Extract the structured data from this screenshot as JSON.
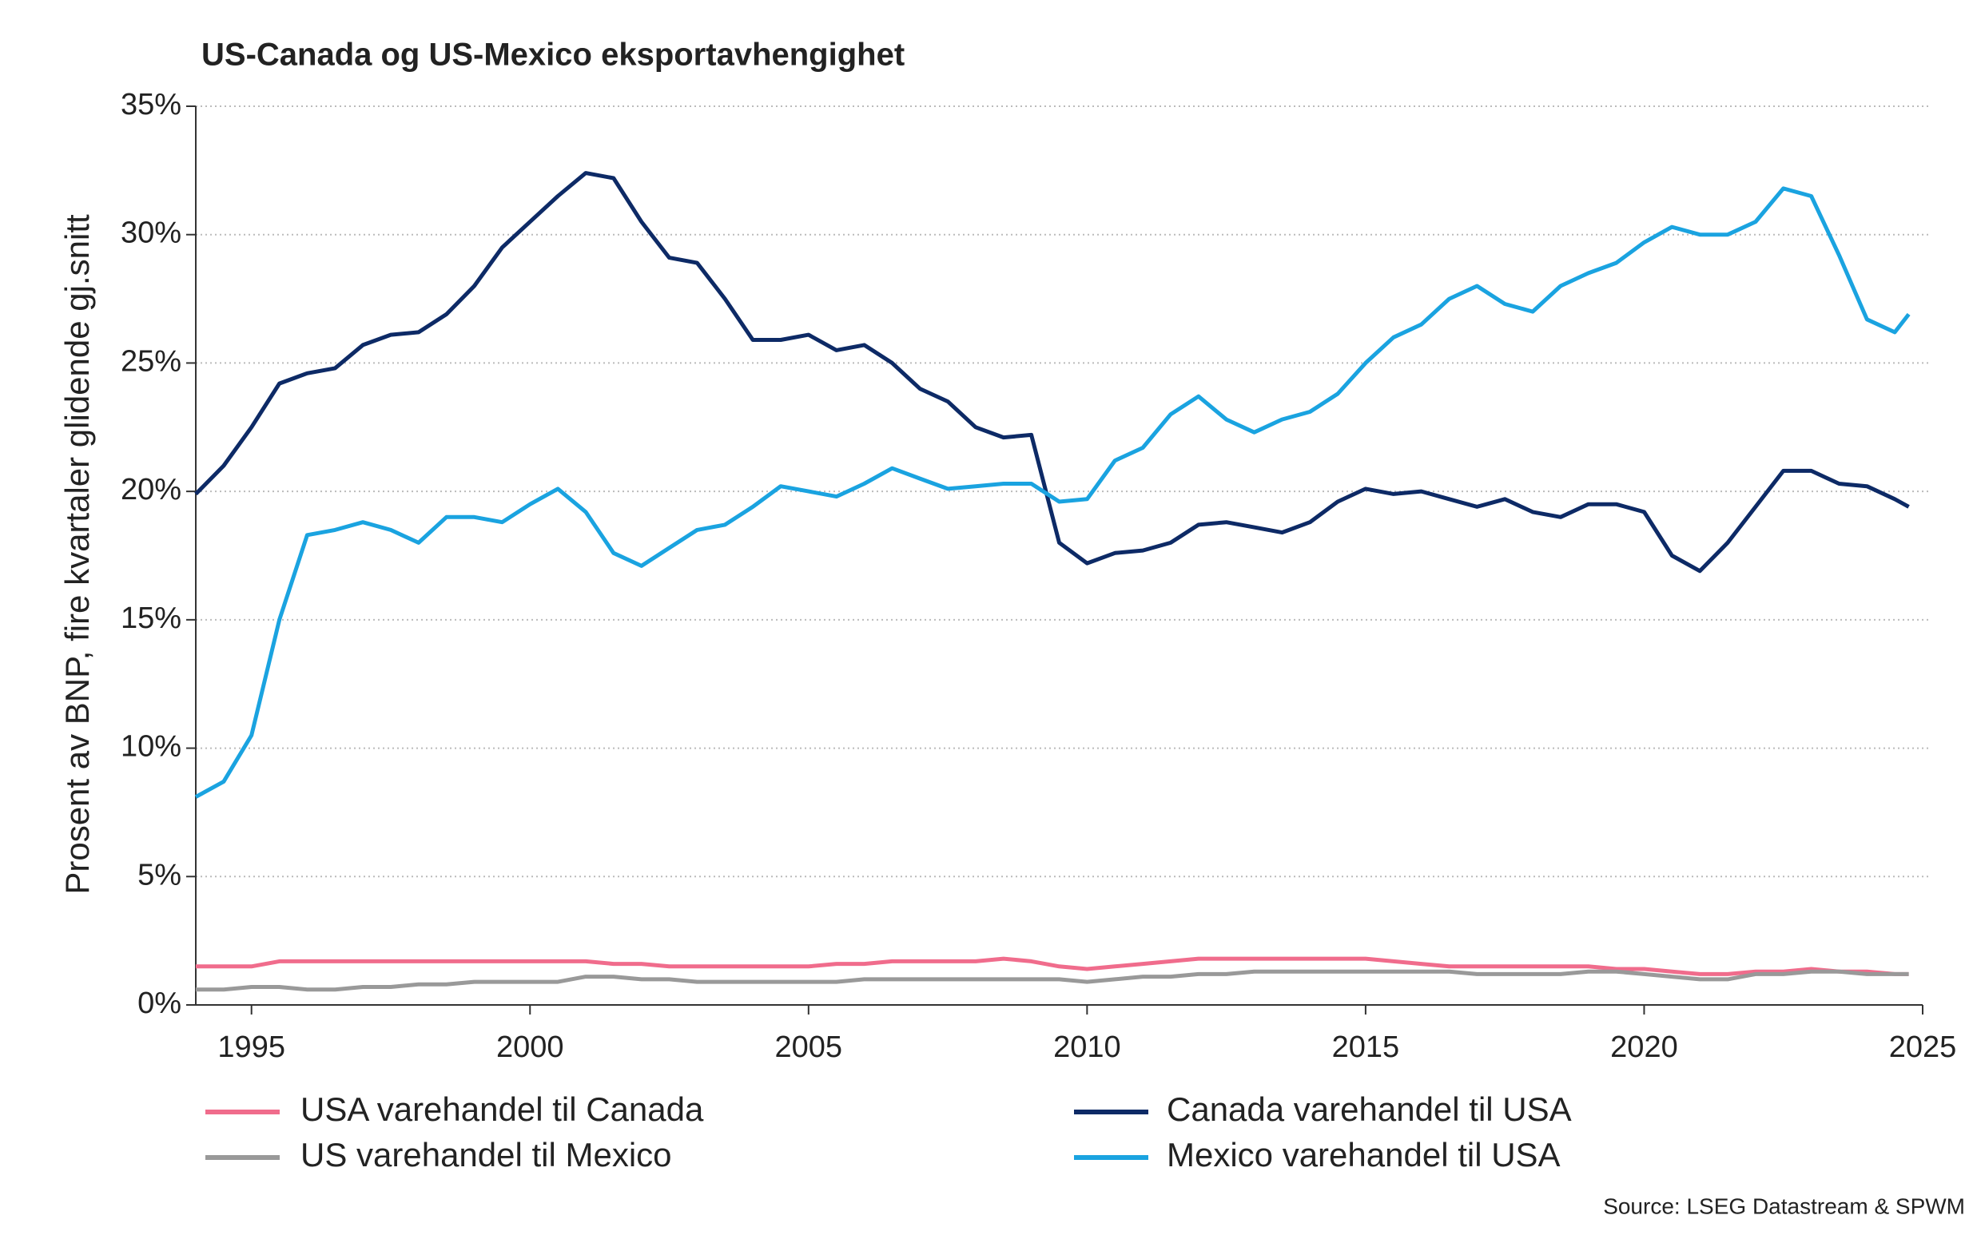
{
  "chart_data": {
    "type": "line",
    "title": "US-Canada og US-Mexico eksportavhengighet",
    "y_label": "Prosent av BNP, fire kvartaler glidende gj.snitt",
    "source": "Source: LSEG Datastream & SPWM",
    "x": [
      1994,
      1994.5,
      1995,
      1995.5,
      1996,
      1996.5,
      1997,
      1997.5,
      1998,
      1998.5,
      1999,
      1999.5,
      2000,
      2000.5,
      2001,
      2001.5,
      2002,
      2002.5,
      2003,
      2003.5,
      2004,
      2004.5,
      2005,
      2005.5,
      2006,
      2006.5,
      2007,
      2007.5,
      2008,
      2008.5,
      2009,
      2009.5,
      2010,
      2010.5,
      2011,
      2011.5,
      2012,
      2012.5,
      2013,
      2013.5,
      2014,
      2014.5,
      2015,
      2015.5,
      2016,
      2016.5,
      2017,
      2017.5,
      2018,
      2018.5,
      2019,
      2019.5,
      2020,
      2020.5,
      2021,
      2021.5,
      2022,
      2022.5,
      2023,
      2023.5,
      2024,
      2024.5,
      2024.75
    ],
    "xlim": [
      1994,
      2025
    ],
    "xticks": [
      1995,
      2000,
      2005,
      2010,
      2015,
      2020,
      2025
    ],
    "ylim": [
      0,
      35
    ],
    "yticks": [
      {
        "value": 0,
        "label": "0%"
      },
      {
        "value": 5,
        "label": "5%"
      },
      {
        "value": 10,
        "label": "10%"
      },
      {
        "value": 15,
        "label": "15%"
      },
      {
        "value": 20,
        "label": "20%"
      },
      {
        "value": 25,
        "label": "25%"
      },
      {
        "value": 30,
        "label": "30%"
      },
      {
        "value": 35,
        "label": "35%"
      }
    ],
    "grid": true,
    "series": [
      {
        "name": "USA varehandel til Canada",
        "color": "#f06c8c",
        "values": [
          1.5,
          1.5,
          1.5,
          1.7,
          1.7,
          1.7,
          1.7,
          1.7,
          1.7,
          1.7,
          1.7,
          1.7,
          1.7,
          1.7,
          1.7,
          1.6,
          1.6,
          1.5,
          1.5,
          1.5,
          1.5,
          1.5,
          1.5,
          1.6,
          1.6,
          1.7,
          1.7,
          1.7,
          1.7,
          1.8,
          1.7,
          1.5,
          1.4,
          1.5,
          1.6,
          1.7,
          1.8,
          1.8,
          1.8,
          1.8,
          1.8,
          1.8,
          1.8,
          1.7,
          1.6,
          1.5,
          1.5,
          1.5,
          1.5,
          1.5,
          1.5,
          1.4,
          1.4,
          1.3,
          1.2,
          1.2,
          1.3,
          1.3,
          1.4,
          1.3,
          1.3,
          1.2,
          1.2
        ]
      },
      {
        "name": "US varehandel til Mexico",
        "color": "#999999",
        "values": [
          0.6,
          0.6,
          0.7,
          0.7,
          0.6,
          0.6,
          0.7,
          0.7,
          0.8,
          0.8,
          0.9,
          0.9,
          0.9,
          0.9,
          1.1,
          1.1,
          1.0,
          1.0,
          0.9,
          0.9,
          0.9,
          0.9,
          0.9,
          0.9,
          1.0,
          1.0,
          1.0,
          1.0,
          1.0,
          1.0,
          1.0,
          1.0,
          0.9,
          1.0,
          1.1,
          1.1,
          1.2,
          1.2,
          1.3,
          1.3,
          1.3,
          1.3,
          1.3,
          1.3,
          1.3,
          1.3,
          1.2,
          1.2,
          1.2,
          1.2,
          1.3,
          1.3,
          1.2,
          1.1,
          1.0,
          1.0,
          1.2,
          1.2,
          1.3,
          1.3,
          1.2,
          1.2,
          1.2
        ]
      },
      {
        "name": "Canada varehandel til USA",
        "color": "#0d2a66",
        "values": [
          19.9,
          21,
          22.5,
          24.2,
          24.6,
          24.8,
          25.7,
          26.1,
          26.2,
          26.9,
          28,
          29.5,
          30.5,
          31.5,
          32.4,
          32.2,
          30.5,
          29.1,
          28.9,
          27.5,
          25.9,
          25.9,
          26.1,
          25.5,
          25.7,
          25.0,
          24.0,
          23.5,
          22.5,
          22.1,
          22.2,
          18.0,
          17.2,
          17.6,
          17.7,
          18.0,
          18.7,
          18.8,
          18.6,
          18.4,
          18.8,
          19.6,
          20.1,
          19.9,
          20.0,
          19.7,
          19.4,
          19.7,
          19.2,
          19.0,
          19.5,
          19.5,
          19.2,
          17.5,
          16.9,
          18.0,
          19.4,
          20.8,
          20.8,
          20.3,
          20.2,
          19.7,
          19.4
        ]
      },
      {
        "name": "Mexico varehandel til USA",
        "color": "#1aa3e0",
        "values": [
          8.1,
          8.7,
          10.5,
          15,
          18.3,
          18.5,
          18.8,
          18.5,
          18.0,
          19.0,
          19.0,
          18.8,
          19.5,
          20.1,
          19.2,
          17.6,
          17.1,
          17.8,
          18.5,
          18.7,
          19.4,
          20.2,
          20.0,
          19.8,
          20.3,
          20.9,
          20.5,
          20.1,
          20.2,
          20.3,
          20.3,
          19.6,
          19.7,
          21.2,
          21.7,
          23.0,
          23.7,
          22.8,
          22.3,
          22.8,
          23.1,
          23.8,
          25.0,
          26.0,
          26.5,
          27.5,
          28.0,
          27.3,
          27.0,
          28.0,
          28.5,
          28.9,
          29.7,
          30.3,
          30.0,
          30.0,
          30.5,
          31.8,
          31.5,
          29.2,
          26.7,
          26.2,
          26.9
        ]
      }
    ]
  }
}
